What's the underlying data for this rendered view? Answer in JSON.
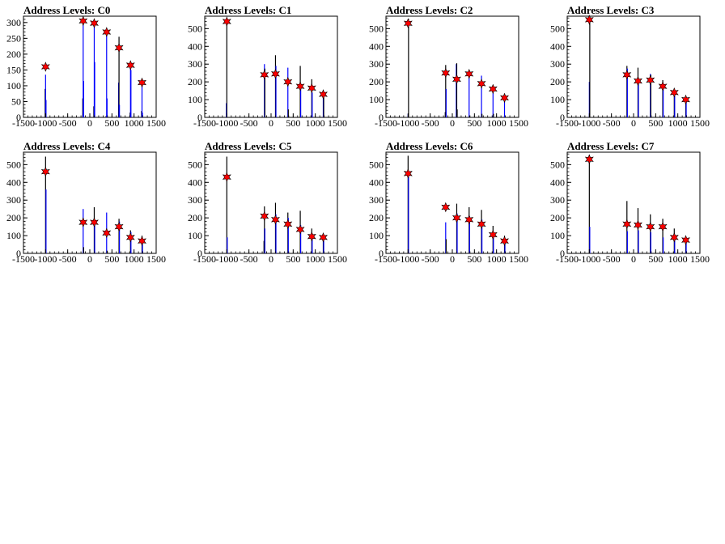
{
  "chart_data": [
    {
      "type": "bar",
      "title": "Address Levels: C0",
      "xlim": [
        -1500,
        1500
      ],
      "ylim": [
        0,
        320
      ],
      "yticks": [
        0,
        50,
        100,
        150,
        200,
        250,
        300
      ],
      "xticks": [
        -1500,
        -1000,
        -500,
        0,
        500,
        1000,
        1500
      ],
      "peaks": [
        {
          "x": -1000,
          "y": 160
        },
        {
          "x": -150,
          "y": 305
        },
        {
          "x": 100,
          "y": 298
        },
        {
          "x": 380,
          "y": 270
        },
        {
          "x": 660,
          "y": 220
        },
        {
          "x": 920,
          "y": 165
        },
        {
          "x": 1180,
          "y": 110
        }
      ],
      "bars": [
        {
          "x": -1010,
          "y": 90,
          "color": "black"
        },
        {
          "x": -1000,
          "y": 135,
          "color": "blue"
        },
        {
          "x": -990,
          "y": 55,
          "color": "blue"
        },
        {
          "x": -160,
          "y": 60,
          "color": "black"
        },
        {
          "x": -150,
          "y": 310,
          "color": "blue"
        },
        {
          "x": -140,
          "y": 115,
          "color": "blue"
        },
        {
          "x": 90,
          "y": 35,
          "color": "black"
        },
        {
          "x": 100,
          "y": 295,
          "color": "blue"
        },
        {
          "x": 110,
          "y": 175,
          "color": "blue"
        },
        {
          "x": 370,
          "y": 5,
          "color": "black"
        },
        {
          "x": 380,
          "y": 280,
          "color": "blue"
        },
        {
          "x": 390,
          "y": 60,
          "color": "blue"
        },
        {
          "x": 650,
          "y": 110,
          "color": "blue"
        },
        {
          "x": 660,
          "y": 255,
          "color": "black"
        },
        {
          "x": 670,
          "y": 40,
          "color": "blue"
        },
        {
          "x": 910,
          "y": 15,
          "color": "black"
        },
        {
          "x": 920,
          "y": 175,
          "color": "blue"
        },
        {
          "x": 930,
          "y": 150,
          "color": "blue"
        },
        {
          "x": 1170,
          "y": 20,
          "color": "black"
        },
        {
          "x": 1180,
          "y": 100,
          "color": "blue"
        },
        {
          "x": 1190,
          "y": 15,
          "color": "blue"
        }
      ]
    },
    {
      "type": "bar",
      "title": "Address Levels: C1",
      "xlim": [
        -1500,
        1500
      ],
      "ylim": [
        0,
        570
      ],
      "yticks": [
        0,
        100,
        200,
        300,
        400,
        500
      ],
      "xticks": [
        -1500,
        -1000,
        -500,
        0,
        500,
        1000,
        1500
      ],
      "peaks": [
        {
          "x": -1000,
          "y": 540
        },
        {
          "x": -150,
          "y": 240
        },
        {
          "x": 100,
          "y": 245
        },
        {
          "x": 380,
          "y": 200
        },
        {
          "x": 660,
          "y": 175
        },
        {
          "x": 920,
          "y": 165
        },
        {
          "x": 1180,
          "y": 130
        }
      ],
      "bars": [
        {
          "x": -1010,
          "y": 80,
          "color": "blue"
        },
        {
          "x": -1000,
          "y": 560,
          "color": "black"
        },
        {
          "x": -150,
          "y": 300,
          "color": "blue"
        },
        {
          "x": -140,
          "y": 275,
          "color": "black"
        },
        {
          "x": 100,
          "y": 350,
          "color": "black"
        },
        {
          "x": 110,
          "y": 290,
          "color": "blue"
        },
        {
          "x": 380,
          "y": 280,
          "color": "blue"
        },
        {
          "x": 390,
          "y": 45,
          "color": "black"
        },
        {
          "x": 660,
          "y": 290,
          "color": "black"
        },
        {
          "x": 670,
          "y": 160,
          "color": "blue"
        },
        {
          "x": 920,
          "y": 215,
          "color": "black"
        },
        {
          "x": 930,
          "y": 140,
          "color": "blue"
        },
        {
          "x": 1180,
          "y": 110,
          "color": "blue"
        },
        {
          "x": 1190,
          "y": 130,
          "color": "black"
        }
      ]
    },
    {
      "type": "bar",
      "title": "Address Levels: C2",
      "xlim": [
        -1500,
        1500
      ],
      "ylim": [
        0,
        570
      ],
      "yticks": [
        0,
        100,
        200,
        300,
        400,
        500
      ],
      "xticks": [
        -1500,
        -1000,
        -500,
        0,
        500,
        1000,
        1500
      ],
      "peaks": [
        {
          "x": -1000,
          "y": 530
        },
        {
          "x": -150,
          "y": 250
        },
        {
          "x": 100,
          "y": 215
        },
        {
          "x": 380,
          "y": 245
        },
        {
          "x": 660,
          "y": 190
        },
        {
          "x": 920,
          "y": 160
        },
        {
          "x": 1180,
          "y": 110
        }
      ],
      "bars": [
        {
          "x": -1000,
          "y": 20,
          "color": "blue"
        },
        {
          "x": -990,
          "y": 555,
          "color": "black"
        },
        {
          "x": -160,
          "y": 30,
          "color": "black"
        },
        {
          "x": -150,
          "y": 295,
          "color": "black"
        },
        {
          "x": -140,
          "y": 160,
          "color": "blue"
        },
        {
          "x": 90,
          "y": 300,
          "color": "blue"
        },
        {
          "x": 100,
          "y": 305,
          "color": "black"
        },
        {
          "x": 110,
          "y": 45,
          "color": "black"
        },
        {
          "x": 380,
          "y": 260,
          "color": "blue"
        },
        {
          "x": 390,
          "y": 10,
          "color": "black"
        },
        {
          "x": 660,
          "y": 235,
          "color": "blue"
        },
        {
          "x": 670,
          "y": 20,
          "color": "black"
        },
        {
          "x": 920,
          "y": 180,
          "color": "blue"
        },
        {
          "x": 930,
          "y": 20,
          "color": "black"
        },
        {
          "x": 1180,
          "y": 120,
          "color": "blue"
        }
      ]
    },
    {
      "type": "bar",
      "title": "Address Levels: C3",
      "xlim": [
        -1500,
        1500
      ],
      "ylim": [
        0,
        570
      ],
      "yticks": [
        0,
        100,
        200,
        300,
        400,
        500
      ],
      "xticks": [
        -1500,
        -1000,
        -500,
        0,
        500,
        1000,
        1500
      ],
      "peaks": [
        {
          "x": -1000,
          "y": 550
        },
        {
          "x": -150,
          "y": 240
        },
        {
          "x": 100,
          "y": 205
        },
        {
          "x": 380,
          "y": 210
        },
        {
          "x": 660,
          "y": 175
        },
        {
          "x": 920,
          "y": 140
        },
        {
          "x": 1180,
          "y": 100
        }
      ],
      "bars": [
        {
          "x": -1000,
          "y": 200,
          "color": "blue"
        },
        {
          "x": -990,
          "y": 555,
          "color": "black"
        },
        {
          "x": -150,
          "y": 290,
          "color": "black"
        },
        {
          "x": -140,
          "y": 275,
          "color": "blue"
        },
        {
          "x": 100,
          "y": 280,
          "color": "black"
        },
        {
          "x": 110,
          "y": 210,
          "color": "blue"
        },
        {
          "x": 380,
          "y": 245,
          "color": "blue"
        },
        {
          "x": 390,
          "y": 240,
          "color": "black"
        },
        {
          "x": 660,
          "y": 210,
          "color": "black"
        },
        {
          "x": 670,
          "y": 190,
          "color": "blue"
        },
        {
          "x": 920,
          "y": 150,
          "color": "black"
        },
        {
          "x": 930,
          "y": 130,
          "color": "blue"
        },
        {
          "x": 1180,
          "y": 110,
          "color": "black"
        },
        {
          "x": 1190,
          "y": 90,
          "color": "blue"
        }
      ]
    },
    {
      "type": "bar",
      "title": "Address Levels: C4",
      "xlim": [
        -1500,
        1500
      ],
      "ylim": [
        0,
        570
      ],
      "yticks": [
        0,
        100,
        200,
        300,
        400,
        500
      ],
      "xticks": [
        -1500,
        -1000,
        -500,
        0,
        500,
        1000,
        1500
      ],
      "peaks": [
        {
          "x": -1000,
          "y": 460
        },
        {
          "x": -150,
          "y": 175
        },
        {
          "x": 100,
          "y": 175
        },
        {
          "x": 380,
          "y": 115
        },
        {
          "x": 660,
          "y": 150
        },
        {
          "x": 920,
          "y": 90
        },
        {
          "x": 1180,
          "y": 70
        }
      ],
      "bars": [
        {
          "x": -1000,
          "y": 545,
          "color": "black"
        },
        {
          "x": -990,
          "y": 360,
          "color": "blue"
        },
        {
          "x": -150,
          "y": 250,
          "color": "blue"
        },
        {
          "x": -140,
          "y": 35,
          "color": "black"
        },
        {
          "x": 100,
          "y": 260,
          "color": "black"
        },
        {
          "x": 110,
          "y": 175,
          "color": "blue"
        },
        {
          "x": 380,
          "y": 230,
          "color": "blue"
        },
        {
          "x": 390,
          "y": 15,
          "color": "black"
        },
        {
          "x": 660,
          "y": 195,
          "color": "black"
        },
        {
          "x": 670,
          "y": 180,
          "color": "blue"
        },
        {
          "x": 920,
          "y": 130,
          "color": "black"
        },
        {
          "x": 930,
          "y": 120,
          "color": "blue"
        },
        {
          "x": 1180,
          "y": 100,
          "color": "black"
        },
        {
          "x": 1190,
          "y": 80,
          "color": "blue"
        }
      ]
    },
    {
      "type": "bar",
      "title": "Address Levels: C5",
      "xlim": [
        -1500,
        1500
      ],
      "ylim": [
        0,
        570
      ],
      "yticks": [
        0,
        100,
        200,
        300,
        400,
        500
      ],
      "xticks": [
        -1500,
        -1000,
        -500,
        0,
        500,
        1000,
        1500
      ],
      "peaks": [
        {
          "x": -1000,
          "y": 430
        },
        {
          "x": -150,
          "y": 210
        },
        {
          "x": 100,
          "y": 190
        },
        {
          "x": 380,
          "y": 165
        },
        {
          "x": 660,
          "y": 135
        },
        {
          "x": 920,
          "y": 95
        },
        {
          "x": 1180,
          "y": 90
        }
      ],
      "bars": [
        {
          "x": -1000,
          "y": 545,
          "color": "black"
        },
        {
          "x": -990,
          "y": 90,
          "color": "blue"
        },
        {
          "x": -160,
          "y": 70,
          "color": "black"
        },
        {
          "x": -150,
          "y": 265,
          "color": "black"
        },
        {
          "x": -140,
          "y": 140,
          "color": "blue"
        },
        {
          "x": 100,
          "y": 285,
          "color": "black"
        },
        {
          "x": 110,
          "y": 220,
          "color": "blue"
        },
        {
          "x": 380,
          "y": 230,
          "color": "black"
        },
        {
          "x": 390,
          "y": 200,
          "color": "blue"
        },
        {
          "x": 660,
          "y": 240,
          "color": "black"
        },
        {
          "x": 670,
          "y": 160,
          "color": "blue"
        },
        {
          "x": 920,
          "y": 140,
          "color": "black"
        },
        {
          "x": 930,
          "y": 100,
          "color": "blue"
        },
        {
          "x": 1180,
          "y": 100,
          "color": "black"
        },
        {
          "x": 1190,
          "y": 70,
          "color": "blue"
        }
      ]
    },
    {
      "type": "bar",
      "title": "Address Levels: C6",
      "xlim": [
        -1500,
        1500
      ],
      "ylim": [
        0,
        570
      ],
      "yticks": [
        0,
        100,
        200,
        300,
        400,
        500
      ],
      "xticks": [
        -1500,
        -1000,
        -500,
        0,
        500,
        1000,
        1500
      ],
      "peaks": [
        {
          "x": -1000,
          "y": 450
        },
        {
          "x": -150,
          "y": 260
        },
        {
          "x": 100,
          "y": 200
        },
        {
          "x": 380,
          "y": 190
        },
        {
          "x": 660,
          "y": 165
        },
        {
          "x": 920,
          "y": 105
        },
        {
          "x": 1180,
          "y": 70
        }
      ],
      "bars": [
        {
          "x": -1000,
          "y": 550,
          "color": "black"
        },
        {
          "x": -990,
          "y": 440,
          "color": "blue"
        },
        {
          "x": -150,
          "y": 175,
          "color": "blue"
        },
        {
          "x": -140,
          "y": 80,
          "color": "black"
        },
        {
          "x": 100,
          "y": 280,
          "color": "black"
        },
        {
          "x": 110,
          "y": 225,
          "color": "blue"
        },
        {
          "x": 380,
          "y": 260,
          "color": "black"
        },
        {
          "x": 390,
          "y": 210,
          "color": "blue"
        },
        {
          "x": 660,
          "y": 245,
          "color": "black"
        },
        {
          "x": 670,
          "y": 190,
          "color": "blue"
        },
        {
          "x": 920,
          "y": 155,
          "color": "black"
        },
        {
          "x": 930,
          "y": 120,
          "color": "blue"
        },
        {
          "x": 1180,
          "y": 100,
          "color": "black"
        },
        {
          "x": 1190,
          "y": 70,
          "color": "blue"
        }
      ]
    },
    {
      "type": "bar",
      "title": "Address Levels: C7",
      "xlim": [
        -1500,
        1500
      ],
      "ylim": [
        0,
        570
      ],
      "yticks": [
        0,
        100,
        200,
        300,
        400,
        500
      ],
      "xticks": [
        -1500,
        -1000,
        -500,
        0,
        500,
        1000,
        1500
      ],
      "peaks": [
        {
          "x": -1000,
          "y": 530
        },
        {
          "x": -150,
          "y": 165
        },
        {
          "x": 100,
          "y": 160
        },
        {
          "x": 380,
          "y": 150
        },
        {
          "x": 660,
          "y": 150
        },
        {
          "x": 920,
          "y": 90
        },
        {
          "x": 1180,
          "y": 75
        }
      ],
      "bars": [
        {
          "x": -1000,
          "y": 555,
          "color": "black"
        },
        {
          "x": -990,
          "y": 150,
          "color": "blue"
        },
        {
          "x": -150,
          "y": 295,
          "color": "black"
        },
        {
          "x": -140,
          "y": 125,
          "color": "blue"
        },
        {
          "x": 100,
          "y": 255,
          "color": "black"
        },
        {
          "x": 110,
          "y": 130,
          "color": "blue"
        },
        {
          "x": 380,
          "y": 220,
          "color": "black"
        },
        {
          "x": 390,
          "y": 120,
          "color": "blue"
        },
        {
          "x": 660,
          "y": 195,
          "color": "black"
        },
        {
          "x": 670,
          "y": 90,
          "color": "blue"
        },
        {
          "x": 920,
          "y": 140,
          "color": "black"
        },
        {
          "x": 930,
          "y": 80,
          "color": "blue"
        },
        {
          "x": 1180,
          "y": 90,
          "color": "black"
        },
        {
          "x": 1190,
          "y": 60,
          "color": "blue"
        }
      ]
    }
  ]
}
